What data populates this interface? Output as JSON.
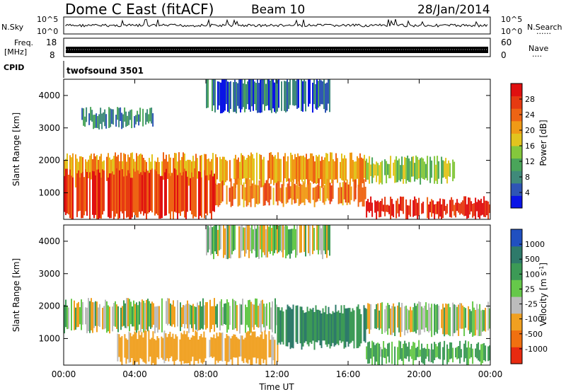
{
  "header": {
    "station": "Dome C East (fitACF)",
    "beam": "Beam 10",
    "date": "28/Jan/2014"
  },
  "top_panels": {
    "nsky_label": "N.Sky",
    "nsky_ticks": [
      "10^5",
      "10^0"
    ],
    "nsearch_label": "N.Search",
    "nsearch_ticks": [
      "10^5",
      "10^0"
    ],
    "freq_label": "Freq.",
    "freq_unit": "[MHz]",
    "freq_ticks": [
      "18",
      "8"
    ],
    "nave_label": "Nave",
    "nave_ticks": [
      "60",
      "0"
    ],
    "cpid_label": "CPID",
    "cpid_value": "twofsound 3501"
  },
  "chart_data": [
    {
      "type": "heatmap",
      "panel": "power",
      "ylabel": "Slant Range [km]",
      "yticks": [
        1000,
        2000,
        3000,
        4000
      ],
      "ylim": [
        180,
        4500
      ],
      "xlim": [
        0,
        24
      ],
      "xticks": [
        "00:00",
        "04:00",
        "08:00",
        "12:00",
        "16:00",
        "20:00",
        "00:00"
      ],
      "colorbar": {
        "label": "Power [dB]",
        "ticks": [
          "4",
          "8",
          "12",
          "16",
          "20",
          "24",
          "28"
        ],
        "colors": [
          "#0a14e6",
          "#2f55b5",
          "#3f8a7a",
          "#4aa55a",
          "#84c83c",
          "#e2c41e",
          "#f09a16",
          "#ee6414",
          "#e63a12",
          "#e01010"
        ]
      },
      "regions": [
        {
          "x": [
            0,
            17
          ],
          "y": [
            1300,
            2100
          ],
          "value": 20
        },
        {
          "x": [
            0,
            8.5
          ],
          "y": [
            300,
            1600
          ],
          "value": 26
        },
        {
          "x": [
            8.5,
            17
          ],
          "y": [
            700,
            1300
          ],
          "value": 22
        },
        {
          "x": [
            17,
            24
          ],
          "y": [
            300,
            750
          ],
          "value": 28
        },
        {
          "x": [
            17,
            22
          ],
          "y": [
            1400,
            2000
          ],
          "value": 14
        },
        {
          "x": [
            1,
            5
          ],
          "y": [
            3100,
            3500
          ],
          "value": 8
        },
        {
          "x": [
            8,
            15
          ],
          "y": [
            3600,
            4500
          ],
          "value": 6
        }
      ]
    },
    {
      "type": "heatmap",
      "panel": "velocity",
      "ylabel": "Slant Range [km]",
      "xlabel": "Time UT",
      "yticks": [
        1000,
        2000,
        3000,
        4000
      ],
      "ylim": [
        180,
        4500
      ],
      "xlim": [
        0,
        24
      ],
      "xticks": [
        "00:00",
        "04:00",
        "08:00",
        "12:00",
        "16:00",
        "20:00",
        "00:00"
      ],
      "colorbar": {
        "label": "Velocity [m s",
        "label_sup": "-1",
        "label_end": "]",
        "ticks": [
          "1000",
          "500",
          "100",
          "25",
          "-25",
          "-100",
          "-500",
          "-1000"
        ],
        "colors": [
          "#2050c0",
          "#2e7a6a",
          "#3c9a56",
          "#66c84a",
          "#bcbcbc",
          "#f0a020",
          "#f07010",
          "#e82a10"
        ]
      },
      "regions": [
        {
          "x": [
            0,
            12
          ],
          "y": [
            1300,
            2100
          ],
          "value": 0
        },
        {
          "x": [
            3,
            12
          ],
          "y": [
            300,
            1100
          ],
          "value": -150
        },
        {
          "x": [
            12,
            17
          ],
          "y": [
            800,
            1900
          ],
          "value": 300
        },
        {
          "x": [
            17,
            24
          ],
          "y": [
            300,
            800
          ],
          "value": 120
        },
        {
          "x": [
            17,
            24
          ],
          "y": [
            1200,
            2000
          ],
          "value": 0
        },
        {
          "x": [
            8,
            15
          ],
          "y": [
            3600,
            4500
          ],
          "value": 0
        }
      ]
    }
  ]
}
